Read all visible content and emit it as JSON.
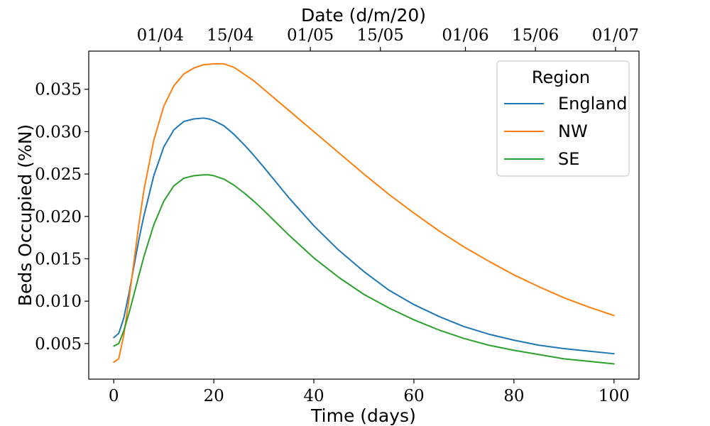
{
  "chart_data": {
    "type": "line",
    "xlabel": "Time (days)",
    "ylabel": "Beds Occupied (%N)",
    "top_xlabel": "Date (d/m/20)",
    "xlim": [
      -5,
      105
    ],
    "ylim": [
      0.0008,
      0.0395
    ],
    "x_ticks": [
      0,
      20,
      40,
      60,
      80,
      100
    ],
    "x_tick_labels": [
      "0",
      "20",
      "40",
      "60",
      "80",
      "100"
    ],
    "y_ticks": [
      0.005,
      0.01,
      0.015,
      0.02,
      0.025,
      0.03,
      0.035
    ],
    "y_tick_labels": [
      "0.005",
      "0.010",
      "0.015",
      "0.020",
      "0.025",
      "0.030",
      "0.035"
    ],
    "top_ticks": [
      9.3,
      23.3,
      39.3,
      53.3,
      70.3,
      84.3,
      100.3
    ],
    "top_tick_labels": [
      "01/04",
      "15/04",
      "01/05",
      "15/05",
      "01/06",
      "15/06",
      "01/07"
    ],
    "grid": false,
    "legend": {
      "title": "Region",
      "placement": "top-right"
    },
    "series": [
      {
        "name": "England",
        "color": "#1f77b4",
        "x": [
          0,
          1,
          2,
          3,
          4,
          5,
          6,
          8,
          10,
          12,
          14,
          16,
          18,
          19,
          20,
          22,
          24,
          26,
          28,
          30,
          35,
          40,
          45,
          50,
          55,
          60,
          65,
          70,
          75,
          80,
          85,
          90,
          95,
          100
        ],
        "y": [
          0.0057,
          0.0062,
          0.008,
          0.0108,
          0.014,
          0.0172,
          0.02,
          0.0248,
          0.0282,
          0.0302,
          0.0312,
          0.0315,
          0.0316,
          0.0315,
          0.0313,
          0.0307,
          0.0297,
          0.0285,
          0.0272,
          0.0258,
          0.0222,
          0.0189,
          0.016,
          0.0135,
          0.0113,
          0.0096,
          0.0082,
          0.007,
          0.0061,
          0.0054,
          0.0048,
          0.0044,
          0.0041,
          0.0038
        ]
      },
      {
        "name": "NW",
        "color": "#ff7f0e",
        "x": [
          0,
          1,
          2,
          3,
          4,
          5,
          6,
          8,
          10,
          12,
          14,
          16,
          18,
          20,
          22,
          24,
          26,
          28,
          30,
          35,
          40,
          45,
          50,
          55,
          60,
          65,
          70,
          75,
          80,
          85,
          90,
          95,
          100
        ],
        "y": [
          0.0028,
          0.0032,
          0.006,
          0.01,
          0.0145,
          0.019,
          0.023,
          0.029,
          0.033,
          0.0354,
          0.0368,
          0.0375,
          0.0379,
          0.038,
          0.038,
          0.0376,
          0.0368,
          0.036,
          0.035,
          0.0325,
          0.03,
          0.0275,
          0.025,
          0.0226,
          0.0204,
          0.0183,
          0.0164,
          0.0147,
          0.0131,
          0.0117,
          0.0104,
          0.0093,
          0.0083
        ]
      },
      {
        "name": "SE",
        "color": "#2ca02c",
        "x": [
          0,
          1,
          2,
          3,
          4,
          5,
          6,
          8,
          10,
          12,
          14,
          16,
          18,
          19,
          20,
          22,
          24,
          26,
          28,
          30,
          35,
          40,
          45,
          50,
          55,
          60,
          65,
          70,
          75,
          80,
          85,
          90,
          95,
          100
        ],
        "y": [
          0.0047,
          0.005,
          0.0065,
          0.0085,
          0.0107,
          0.013,
          0.0152,
          0.019,
          0.0218,
          0.0236,
          0.0245,
          0.0248,
          0.0249,
          0.0249,
          0.0248,
          0.0244,
          0.0237,
          0.0228,
          0.0218,
          0.0207,
          0.0178,
          0.0151,
          0.0128,
          0.0108,
          0.0092,
          0.0078,
          0.0066,
          0.0056,
          0.0048,
          0.0042,
          0.0037,
          0.0032,
          0.0029,
          0.0026
        ]
      }
    ]
  }
}
